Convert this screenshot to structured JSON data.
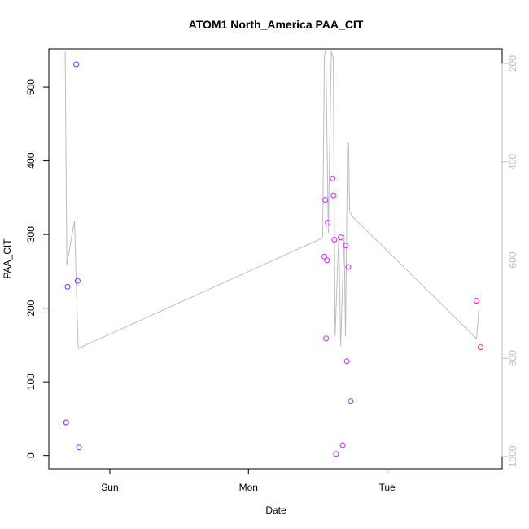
{
  "chart_data": {
    "type": "scatter",
    "title": "ATOM1 North_America PAA_CIT",
    "xlabel": "Date",
    "ylabel": "PAA_CIT",
    "x_ticks": [
      {
        "label": "Sun",
        "day": 1
      },
      {
        "label": "Mon",
        "day": 2
      },
      {
        "label": "Tue",
        "day": 3
      }
    ],
    "xlim": [
      0.56,
      3.83
    ],
    "ylim": [
      -18,
      552
    ],
    "y_ticks": [
      0,
      100,
      200,
      300,
      400,
      500
    ],
    "right_axis": {
      "ylim": [
        1025,
        170
      ],
      "ticks": [
        200,
        400,
        600,
        800,
        1000
      ],
      "color": "#bdbdbd"
    },
    "grid": false,
    "points": [
      {
        "x": 0.685,
        "y": 45,
        "color": "#7a2bff"
      },
      {
        "x": 0.695,
        "y": 229,
        "color": "#7a2bff"
      },
      {
        "x": 0.758,
        "y": 531,
        "color": "#7a2bff"
      },
      {
        "x": 0.768,
        "y": 237,
        "color": "#7a2bff"
      },
      {
        "x": 0.778,
        "y": 11,
        "color": "#7a2bff"
      },
      {
        "x": 2.548,
        "y": 270,
        "color": "#cc22ee"
      },
      {
        "x": 2.554,
        "y": 347,
        "color": "#cc22ee"
      },
      {
        "x": 2.56,
        "y": 159,
        "color": "#cc22ee"
      },
      {
        "x": 2.566,
        "y": 265,
        "color": "#cc22ee"
      },
      {
        "x": 2.572,
        "y": 316,
        "color": "#cc22ee"
      },
      {
        "x": 2.608,
        "y": 376,
        "color": "#cc22ee"
      },
      {
        "x": 2.614,
        "y": 353,
        "color": "#cc22ee"
      },
      {
        "x": 2.62,
        "y": 293,
        "color": "#cc22ee"
      },
      {
        "x": 2.632,
        "y": 2,
        "color": "#cc22ee"
      },
      {
        "x": 2.665,
        "y": 296,
        "color": "#cc22ee"
      },
      {
        "x": 2.68,
        "y": 14,
        "color": "#cc22ee"
      },
      {
        "x": 2.702,
        "y": 285,
        "color": "#cc22ee"
      },
      {
        "x": 2.71,
        "y": 128,
        "color": "#cc22ee"
      },
      {
        "x": 2.72,
        "y": 256,
        "color": "#cc22ee"
      },
      {
        "x": 2.738,
        "y": 74,
        "color": "#cc22ee"
      },
      {
        "x": 3.645,
        "y": 210,
        "color": "#dd2299"
      },
      {
        "x": 3.675,
        "y": 147,
        "color": "#dd2299"
      }
    ],
    "line": {
      "color": "#bdbdbd",
      "x": [
        0.678,
        0.69,
        0.745,
        0.772,
        2.535,
        2.548,
        2.558,
        2.576,
        2.598,
        2.612,
        2.625,
        2.652,
        2.665,
        2.69,
        2.7,
        2.715,
        2.722,
        2.73,
        2.745,
        3.645,
        3.662
      ],
      "y": [
        175,
        610,
        520,
        780,
        555,
        185,
        170,
        545,
        175,
        190,
        755,
        550,
        775,
        545,
        755,
        365,
        360,
        500,
        510,
        760,
        700
      ]
    }
  }
}
